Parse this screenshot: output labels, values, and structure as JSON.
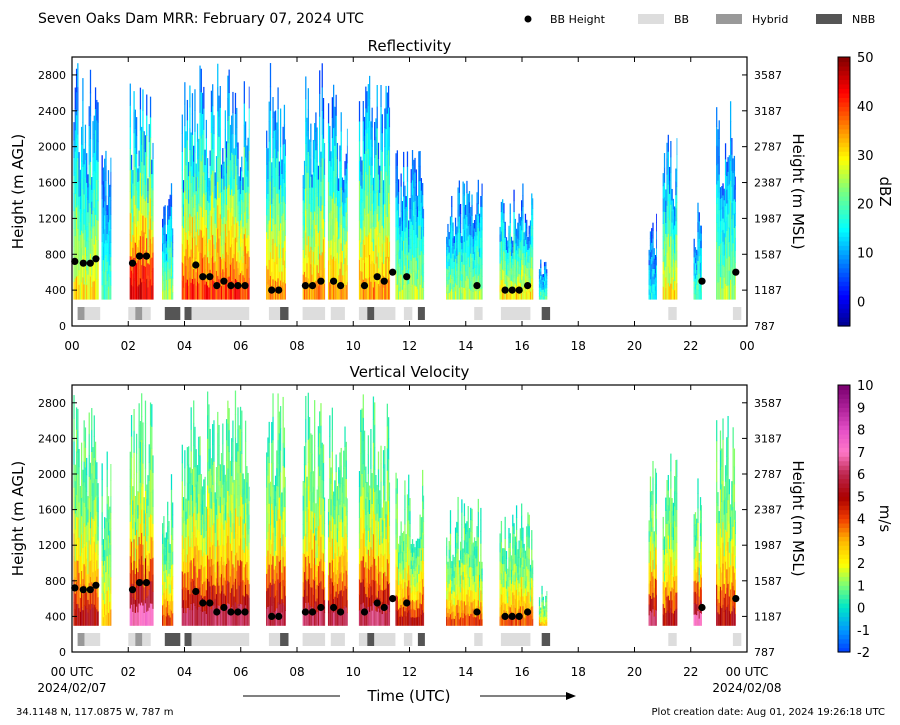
{
  "header": {
    "title": "Seven Oaks Dam MRR:  February 07, 2024 UTC",
    "legend": [
      {
        "label": "BB Height",
        "kind": "dot",
        "color": "#000000"
      },
      {
        "label": "BB",
        "kind": "box",
        "color": "#dddddd"
      },
      {
        "label": "Hybrid",
        "kind": "box",
        "color": "#999999"
      },
      {
        "label": "NBB",
        "kind": "box",
        "color": "#555555"
      }
    ]
  },
  "footer": {
    "location": "34.1148 N, 117.0875 W, 787 m",
    "creation": "Plot creation date: Aug 01, 2024 19:26:18 UTC",
    "xlabel": "Time (UTC)"
  },
  "chart_data": [
    {
      "type": "heatmap",
      "title": "Reflectivity",
      "ylabel_left": "Height (m AGL)",
      "ylabel_right": "Height (m MSL)",
      "xlim": [
        0,
        24
      ],
      "ylim": [
        0,
        3000
      ],
      "x_ticks": [
        "00",
        "02",
        "04",
        "06",
        "08",
        "10",
        "12",
        "14",
        "16",
        "18",
        "20",
        "22",
        "00"
      ],
      "y_ticks_left": [
        0,
        400,
        800,
        1200,
        1600,
        2000,
        2400,
        2800
      ],
      "y_ticks_right": [
        787,
        1187,
        1587,
        1987,
        2387,
        2787,
        3187,
        3587
      ],
      "colorbar": {
        "label": "dBZ",
        "min": -5,
        "max": 50,
        "ticks": [
          0,
          10,
          20,
          30,
          40,
          50
        ],
        "scheme": "jet"
      },
      "echo_columns": [
        {
          "t0": 0.05,
          "t1": 0.95,
          "top": 2950,
          "core": 30
        },
        {
          "t0": 1.05,
          "t1": 1.4,
          "top": 2000,
          "core": 20
        },
        {
          "t0": 2.05,
          "t1": 2.9,
          "top": 2950,
          "core": 45
        },
        {
          "t0": 3.2,
          "t1": 3.6,
          "top": 1750,
          "core": 25
        },
        {
          "t0": 3.9,
          "t1": 6.3,
          "top": 2950,
          "core": 40
        },
        {
          "t0": 6.9,
          "t1": 7.6,
          "top": 2950,
          "core": 35
        },
        {
          "t0": 8.2,
          "t1": 9.0,
          "top": 2950,
          "core": 35
        },
        {
          "t0": 9.1,
          "t1": 9.8,
          "top": 2950,
          "core": 35
        },
        {
          "t0": 10.2,
          "t1": 11.3,
          "top": 2950,
          "core": 35
        },
        {
          "t0": 11.5,
          "t1": 12.5,
          "top": 2000,
          "core": 25
        },
        {
          "t0": 13.3,
          "t1": 14.6,
          "top": 1700,
          "core": 25
        },
        {
          "t0": 15.2,
          "t1": 16.4,
          "top": 1600,
          "core": 30
        },
        {
          "t0": 16.6,
          "t1": 16.9,
          "top": 800,
          "core": 20
        },
        {
          "t0": 20.5,
          "t1": 20.8,
          "top": 1350,
          "core": 15
        },
        {
          "t0": 21.0,
          "t1": 21.5,
          "top": 2300,
          "core": 30
        },
        {
          "t0": 22.1,
          "t1": 22.4,
          "top": 1500,
          "core": 20
        },
        {
          "t0": 22.9,
          "t1": 23.6,
          "top": 2700,
          "core": 25
        }
      ],
      "bb_heights": {
        "t": [
          0.1,
          0.4,
          0.65,
          0.85,
          2.15,
          2.4,
          2.65,
          4.4,
          4.65,
          4.9,
          5.15,
          5.4,
          5.65,
          5.9,
          6.15,
          7.1,
          7.35,
          8.3,
          8.55,
          8.85,
          9.3,
          9.55,
          10.4,
          10.85,
          11.1,
          11.4,
          11.9,
          14.4,
          15.4,
          15.65,
          15.9,
          16.2,
          22.4,
          23.6
        ],
        "h": [
          720,
          700,
          700,
          750,
          700,
          780,
          780,
          680,
          550,
          550,
          450,
          500,
          450,
          450,
          450,
          400,
          400,
          450,
          450,
          500,
          500,
          450,
          450,
          550,
          500,
          600,
          550,
          450,
          400,
          400,
          400,
          450,
          500,
          600
        ]
      },
      "bb_class": [
        {
          "t0": 0.2,
          "t1": 0.45,
          "class": "Hybrid"
        },
        {
          "t0": 0.45,
          "t1": 1.0,
          "class": "BB"
        },
        {
          "t0": 2.0,
          "t1": 2.25,
          "class": "BB"
        },
        {
          "t0": 2.25,
          "t1": 2.5,
          "class": "Hybrid"
        },
        {
          "t0": 2.5,
          "t1": 2.8,
          "class": "BB"
        },
        {
          "t0": 3.3,
          "t1": 3.85,
          "class": "NBB"
        },
        {
          "t0": 4.0,
          "t1": 4.25,
          "class": "NBB"
        },
        {
          "t0": 4.25,
          "t1": 6.3,
          "class": "BB"
        },
        {
          "t0": 7.0,
          "t1": 7.4,
          "class": "BB"
        },
        {
          "t0": 7.4,
          "t1": 7.7,
          "class": "NBB"
        },
        {
          "t0": 8.2,
          "t1": 9.0,
          "class": "BB"
        },
        {
          "t0": 9.2,
          "t1": 9.7,
          "class": "BB"
        },
        {
          "t0": 10.2,
          "t1": 10.5,
          "class": "BB"
        },
        {
          "t0": 10.5,
          "t1": 10.75,
          "class": "NBB"
        },
        {
          "t0": 10.75,
          "t1": 11.5,
          "class": "BB"
        },
        {
          "t0": 11.8,
          "t1": 12.1,
          "class": "BB"
        },
        {
          "t0": 12.3,
          "t1": 12.55,
          "class": "NBB"
        },
        {
          "t0": 14.3,
          "t1": 14.6,
          "class": "BB"
        },
        {
          "t0": 15.25,
          "t1": 16.3,
          "class": "BB"
        },
        {
          "t0": 16.7,
          "t1": 17.0,
          "class": "NBB"
        },
        {
          "t0": 21.2,
          "t1": 21.5,
          "class": "BB"
        },
        {
          "t0": 23.5,
          "t1": 23.8,
          "class": "BB"
        }
      ]
    },
    {
      "type": "heatmap",
      "title": "Vertical Velocity",
      "ylabel_left": "Height (m AGL)",
      "ylabel_right": "Height (m MSL)",
      "xlim": [
        0,
        24
      ],
      "ylim": [
        0,
        3000
      ],
      "x_ticks": [
        "00 UTC",
        "02",
        "04",
        "06",
        "08",
        "10",
        "12",
        "14",
        "16",
        "18",
        "20",
        "22",
        "00 UTC"
      ],
      "x_dates": [
        "2024/02/07",
        "2024/02/08"
      ],
      "y_ticks_left": [
        0,
        400,
        800,
        1200,
        1600,
        2000,
        2400,
        2800
      ],
      "y_ticks_right": [
        787,
        1187,
        1587,
        1987,
        2387,
        2787,
        3187,
        3587
      ],
      "colorbar": {
        "label": "m/s",
        "min": -2,
        "max": 10,
        "ticks": [
          -2,
          -1,
          0,
          1,
          2,
          3,
          4,
          5,
          6,
          7,
          8,
          9,
          10
        ],
        "scheme": "velocity"
      },
      "echo_columns": [
        {
          "t0": 0.05,
          "t1": 0.95,
          "top": 2950,
          "core": 5
        },
        {
          "t0": 1.05,
          "t1": 1.4,
          "top": 2300,
          "core": 3
        },
        {
          "t0": 2.05,
          "t1": 2.9,
          "top": 2950,
          "core": 7
        },
        {
          "t0": 3.2,
          "t1": 3.6,
          "top": 2000,
          "core": 4
        },
        {
          "t0": 3.9,
          "t1": 6.3,
          "top": 2950,
          "core": 6
        },
        {
          "t0": 6.9,
          "t1": 7.6,
          "top": 2950,
          "core": 6
        },
        {
          "t0": 8.2,
          "t1": 9.0,
          "top": 2950,
          "core": 6
        },
        {
          "t0": 9.1,
          "t1": 9.8,
          "top": 2950,
          "core": 6
        },
        {
          "t0": 10.2,
          "t1": 11.3,
          "top": 2950,
          "core": 6
        },
        {
          "t0": 11.5,
          "t1": 12.5,
          "top": 2100,
          "core": 5
        },
        {
          "t0": 13.3,
          "t1": 14.6,
          "top": 1750,
          "core": 4
        },
        {
          "t0": 15.2,
          "t1": 16.4,
          "top": 1700,
          "core": 4
        },
        {
          "t0": 16.6,
          "t1": 16.9,
          "top": 800,
          "core": 3
        },
        {
          "t0": 20.5,
          "t1": 20.8,
          "top": 2200,
          "core": 6
        },
        {
          "t0": 21.0,
          "t1": 21.5,
          "top": 2300,
          "core": 5
        },
        {
          "t0": 22.1,
          "t1": 22.4,
          "top": 2000,
          "core": 7
        },
        {
          "t0": 22.9,
          "t1": 23.6,
          "top": 2700,
          "core": 5
        }
      ],
      "bb_heights": {
        "t": [
          0.1,
          0.4,
          0.65,
          0.85,
          2.15,
          2.4,
          2.65,
          4.4,
          4.65,
          4.9,
          5.15,
          5.4,
          5.65,
          5.9,
          6.15,
          7.1,
          7.35,
          8.3,
          8.55,
          8.85,
          9.3,
          9.55,
          10.4,
          10.85,
          11.1,
          11.4,
          11.9,
          14.4,
          15.4,
          15.65,
          15.9,
          16.2,
          22.4,
          23.6
        ],
        "h": [
          720,
          700,
          700,
          750,
          700,
          780,
          780,
          680,
          550,
          550,
          450,
          500,
          450,
          450,
          450,
          400,
          400,
          450,
          450,
          500,
          500,
          450,
          450,
          550,
          500,
          600,
          550,
          450,
          400,
          400,
          400,
          450,
          500,
          600
        ]
      },
      "bb_class": [
        {
          "t0": 0.2,
          "t1": 0.45,
          "class": "Hybrid"
        },
        {
          "t0": 0.45,
          "t1": 1.0,
          "class": "BB"
        },
        {
          "t0": 2.0,
          "t1": 2.25,
          "class": "BB"
        },
        {
          "t0": 2.25,
          "t1": 2.5,
          "class": "Hybrid"
        },
        {
          "t0": 2.5,
          "t1": 2.8,
          "class": "BB"
        },
        {
          "t0": 3.3,
          "t1": 3.85,
          "class": "NBB"
        },
        {
          "t0": 4.0,
          "t1": 4.25,
          "class": "NBB"
        },
        {
          "t0": 4.25,
          "t1": 6.3,
          "class": "BB"
        },
        {
          "t0": 7.0,
          "t1": 7.4,
          "class": "BB"
        },
        {
          "t0": 7.4,
          "t1": 7.7,
          "class": "NBB"
        },
        {
          "t0": 8.2,
          "t1": 9.0,
          "class": "BB"
        },
        {
          "t0": 9.2,
          "t1": 9.7,
          "class": "BB"
        },
        {
          "t0": 10.2,
          "t1": 10.5,
          "class": "BB"
        },
        {
          "t0": 10.5,
          "t1": 10.75,
          "class": "NBB"
        },
        {
          "t0": 10.75,
          "t1": 11.5,
          "class": "BB"
        },
        {
          "t0": 11.8,
          "t1": 12.1,
          "class": "BB"
        },
        {
          "t0": 12.3,
          "t1": 12.55,
          "class": "NBB"
        },
        {
          "t0": 14.3,
          "t1": 14.6,
          "class": "BB"
        },
        {
          "t0": 15.25,
          "t1": 16.3,
          "class": "BB"
        },
        {
          "t0": 16.7,
          "t1": 17.0,
          "class": "NBB"
        },
        {
          "t0": 21.2,
          "t1": 21.5,
          "class": "BB"
        },
        {
          "t0": 23.5,
          "t1": 23.8,
          "class": "BB"
        }
      ]
    }
  ]
}
